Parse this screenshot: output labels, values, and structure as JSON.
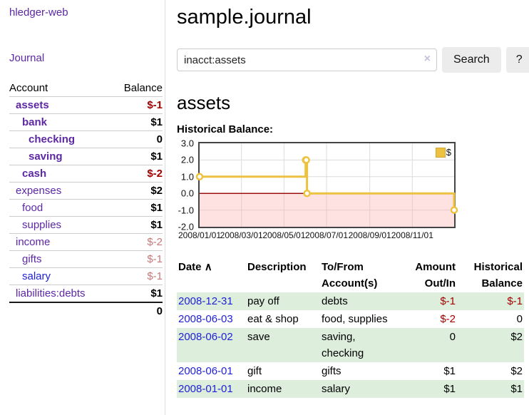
{
  "app": {
    "title": "hledger-web",
    "nav_journal": "Journal"
  },
  "sidebar": {
    "header": {
      "account": "Account",
      "balance": "Balance"
    },
    "accounts": [
      {
        "name": "assets",
        "balance": "$-1"
      },
      {
        "name": "bank",
        "balance": "$1"
      },
      {
        "name": "checking",
        "balance": "0"
      },
      {
        "name": "saving",
        "balance": "$1"
      },
      {
        "name": "cash",
        "balance": "$-2"
      },
      {
        "name": "expenses",
        "balance": "$2"
      },
      {
        "name": "food",
        "balance": "$1"
      },
      {
        "name": "supplies",
        "balance": "$1"
      },
      {
        "name": "income",
        "balance": "$-2"
      },
      {
        "name": "gifts",
        "balance": "$-1"
      },
      {
        "name": "salary",
        "balance": "$-1"
      },
      {
        "name": "liabilities:debts",
        "balance": "$1"
      }
    ],
    "total": "0"
  },
  "main": {
    "title": "sample.journal",
    "search": {
      "value": "inacct:assets",
      "clear_icon": "×",
      "search_button": "Search",
      "help_button": "?"
    },
    "heading": "assets",
    "chart_label": "Historical Balance:"
  },
  "chart_data": {
    "type": "line",
    "step": true,
    "title": "Historical Balance",
    "legend": "$",
    "series": [
      {
        "name": "$",
        "points": [
          [
            "2008-01-01",
            1
          ],
          [
            "2008-06-01",
            2
          ],
          [
            "2008-06-02",
            2
          ],
          [
            "2008-06-03",
            0
          ],
          [
            "2008-12-31",
            -1
          ]
        ]
      }
    ],
    "ylim": [
      -2,
      3
    ],
    "yticks": [
      -2,
      -1,
      0,
      1,
      2,
      3
    ],
    "ytick_labels": [
      "-2.0",
      "-1.0",
      "0.0",
      "1.0",
      "2.0",
      "3.0"
    ],
    "xlim": [
      "2008-01-01",
      "2008-12-31"
    ],
    "xticks": [
      "2008-01-01",
      "2008-03-01",
      "2008-05-01",
      "2008-07-01",
      "2008-09-01",
      "2008-11-01"
    ],
    "xtick_labels": [
      "2008/01/01",
      "2008/03/01",
      "2008/05/01",
      "2008/07/01",
      "2008/09/01",
      "2008/11/01"
    ],
    "grid": true,
    "legend_position": "top-right",
    "colors": {
      "line": "#edc240",
      "marker_fill": "#ffffff",
      "negative_fill": "rgba(252,180,180,0.38)",
      "zero_line": "#991111",
      "grid": "#dcdcdc",
      "border": "#454545"
    }
  },
  "table": {
    "sort_icon": "∧",
    "columns": {
      "date": "Date",
      "description": "Description",
      "accounts": "To/From\nAccount(s)",
      "amount": "Amount\nOut/In",
      "balance": "Historical\nBalance"
    },
    "rows": [
      {
        "date": "2008-12-31",
        "description": "pay off",
        "accounts": "debts",
        "amount": "$-1",
        "balance": "$-1"
      },
      {
        "date": "2008-06-03",
        "description": "eat & shop",
        "accounts": "food, supplies",
        "amount": "$-2",
        "balance": "0"
      },
      {
        "date": "2008-06-02",
        "description": "save",
        "accounts": "saving,\nchecking",
        "amount": "0",
        "balance": "$2"
      },
      {
        "date": "2008-06-01",
        "description": "gift",
        "accounts": "gifts",
        "amount": "$1",
        "balance": "$2"
      },
      {
        "date": "2008-01-01",
        "description": "income",
        "accounts": "salary",
        "amount": "$1",
        "balance": "$1"
      }
    ]
  }
}
